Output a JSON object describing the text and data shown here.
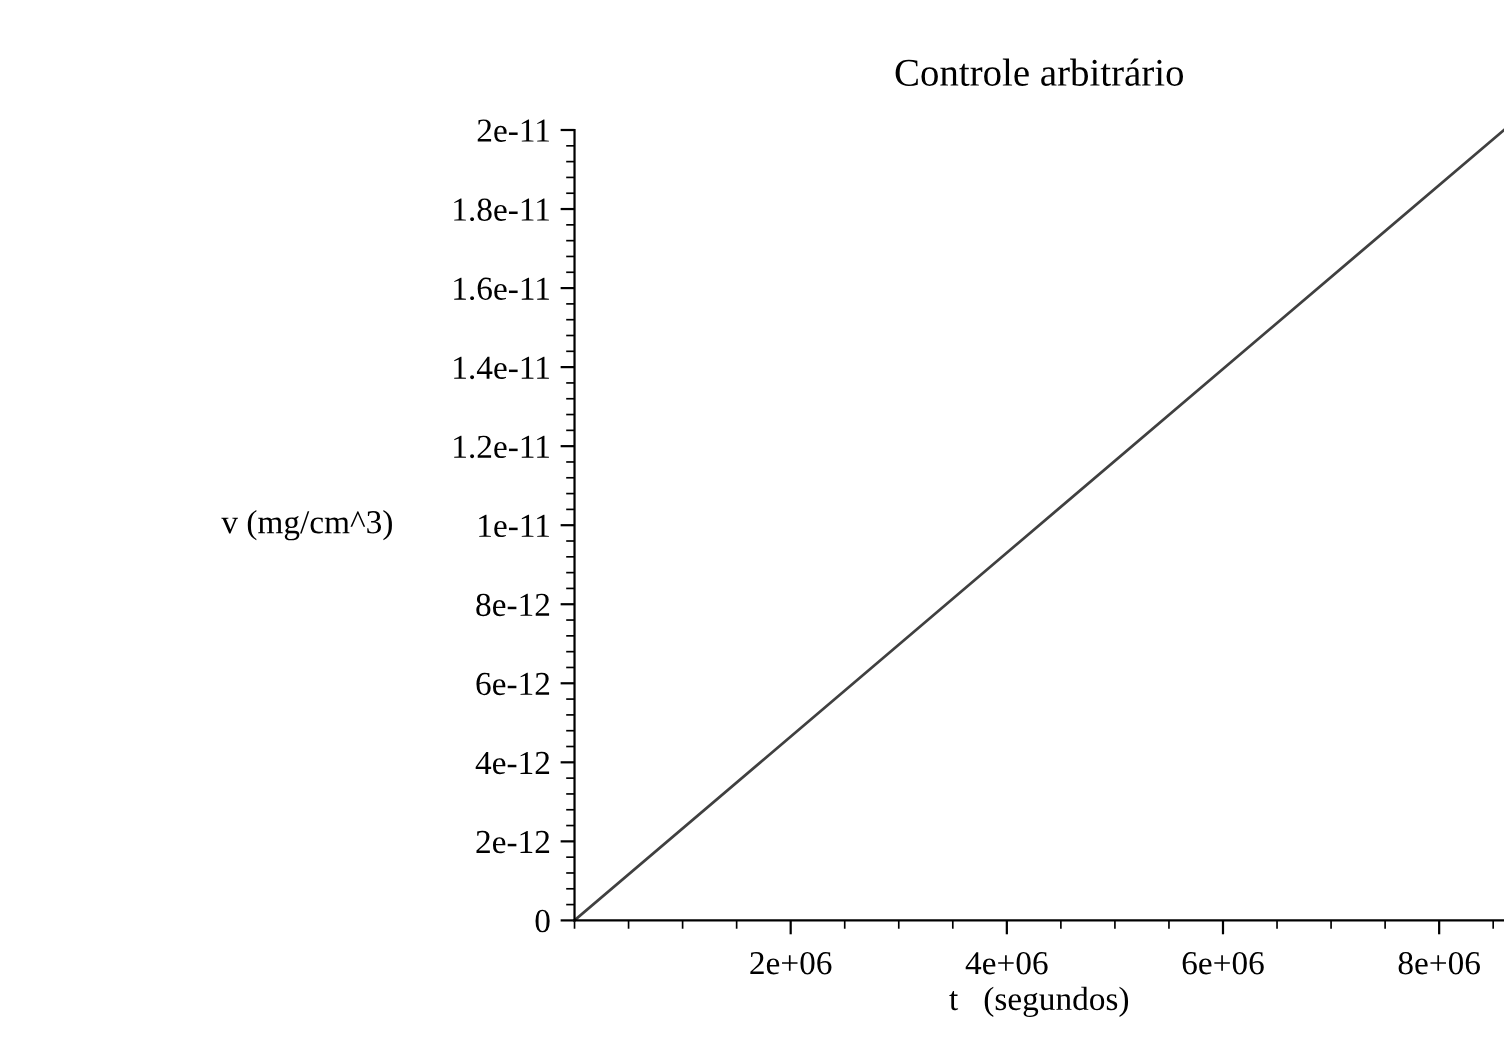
{
  "chart_data": {
    "type": "line",
    "title": "Controle arbitrário",
    "xlabel": "t   (segundos)",
    "ylabel": "v (mg/cm^3)",
    "x": [
      0,
      8600000
    ],
    "series": [
      {
        "color": "#404040",
        "values": [
          0,
          2e-11
        ]
      }
    ],
    "xlim": [
      0,
      8600000
    ],
    "xticks": [
      {
        "value": 2000000,
        "label": "2e+06"
      },
      {
        "value": 4000000,
        "label": "4e+06"
      },
      {
        "value": 6000000,
        "label": "6e+06"
      },
      {
        "value": 8000000,
        "label": "8e+06"
      }
    ],
    "ylim": [
      0,
      2e-11
    ],
    "yticks": [
      0,
      {
        "value": 2e-12,
        "label": "2e-12"
      },
      {
        "value": 4e-12,
        "label": "4e-12"
      },
      {
        "value": 6e-12,
        "label": "6e-12"
      },
      {
        "value": 8e-12,
        "label": "8e-12"
      },
      {
        "value": 1e-11,
        "label": "1e-11"
      },
      {
        "value": 1.2e-11,
        "label": "1.2e-11"
      },
      {
        "value": 1.4e-11,
        "label": "1.4e-11"
      },
      {
        "value": 1.6e-11,
        "label": "1.6e-11"
      },
      {
        "value": 1.8e-11,
        "label": "1.8e-11"
      },
      {
        "value": 2e-11,
        "label": "2e-11"
      }
    ],
    "grid": false,
    "legend": false,
    "line_style": "solid",
    "marker": "none"
  }
}
